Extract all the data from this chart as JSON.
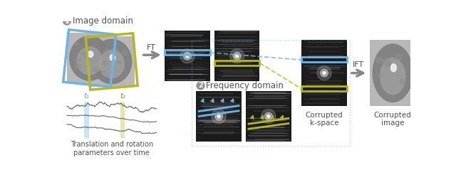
{
  "label_image_domain": "Image domain",
  "label_freq_domain": "Frequency domain",
  "label_ft": "FT",
  "label_ift": "IFT",
  "label_corrupted_kspace": "Corrupted\nk-space",
  "label_corrupted_image": "Corrupted\nimage",
  "label_motion": "Translation and rotation\nparameters over time",
  "label_t1": "t₁",
  "label_t2": "t₂",
  "color_blue": "#6ab4e8",
  "color_yellow": "#b5b820",
  "color_text": "#505050",
  "figsize": [
    6.4,
    2.46
  ],
  "dpi": 100
}
